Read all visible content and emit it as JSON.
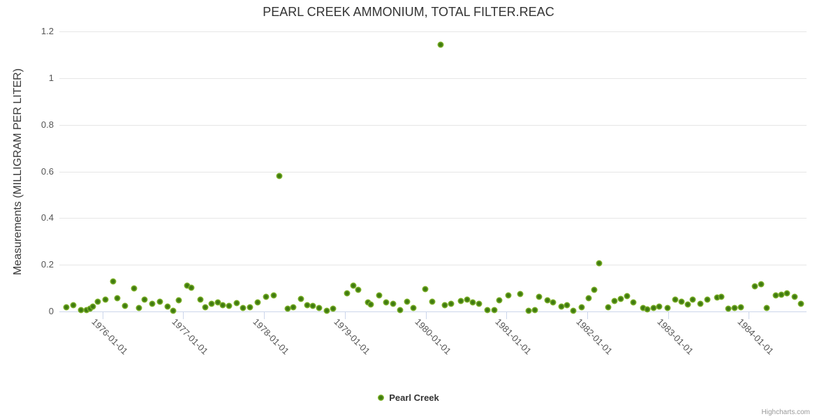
{
  "credits": {
    "label": "Highcharts.com"
  },
  "legend": {
    "label": "Pearl Creek"
  },
  "colors": {
    "marker_outer": "#8bbd30",
    "marker_inner": "#3e7a10",
    "grid": "#e6e6e6",
    "axis_line": "#ccd6eb",
    "tick": "#ccd6eb",
    "title": "#333333",
    "labels": "#555555",
    "credits": "#999999"
  },
  "chart_data": {
    "type": "scatter",
    "title": "PEARL CREEK AMMONIUM, TOTAL FILTER.REAC",
    "xlabel": "",
    "ylabel": "Measurements (MILLIGRAM PER LITER)",
    "ylim": [
      0,
      1.2
    ],
    "xlim_years": [
      1975.467,
      1984.713
    ],
    "grid": "horizontal",
    "legend_position": "bottom-center",
    "y_ticks": [
      0,
      0.2,
      0.4,
      0.6,
      0.8,
      1,
      1.2
    ],
    "y_tick_labels": [
      "0",
      "0.2",
      "0.4",
      "0.6",
      "0.8",
      "1",
      "1.2"
    ],
    "x_tick_labels": [
      "1976-01-01",
      "1977-01-01",
      "1978-01-01",
      "1979-01-01",
      "1980-01-01",
      "1981-01-01",
      "1982-01-01",
      "1983-01-01",
      "1984-01-01"
    ],
    "series": [
      {
        "name": "Pearl Creek",
        "color": "#8bbd30",
        "points": [
          [
            "1975-07-20",
            0.019
          ],
          [
            "1975-08-21",
            0.028
          ],
          [
            "1975-09-25",
            0.007
          ],
          [
            "1975-10-20",
            0.007
          ],
          [
            "1975-11-05",
            0.011
          ],
          [
            "1975-11-18",
            0.022
          ],
          [
            "1975-12-10",
            0.041
          ],
          [
            "1976-01-14",
            0.051
          ],
          [
            "1976-02-18",
            0.129
          ],
          [
            "1976-03-07",
            0.057
          ],
          [
            "1976-04-11",
            0.025
          ],
          [
            "1976-05-21",
            0.098
          ],
          [
            "1976-06-13",
            0.014
          ],
          [
            "1976-07-08",
            0.052
          ],
          [
            "1976-08-12",
            0.034
          ],
          [
            "1976-09-16",
            0.043
          ],
          [
            "1976-10-21",
            0.022
          ],
          [
            "1976-11-15",
            0.004
          ],
          [
            "1976-12-11",
            0.049
          ],
          [
            "1977-01-18",
            0.112
          ],
          [
            "1977-02-06",
            0.102
          ],
          [
            "1977-03-17",
            0.052
          ],
          [
            "1977-04-09",
            0.019
          ],
          [
            "1977-05-07",
            0.034
          ],
          [
            "1977-06-05",
            0.04
          ],
          [
            "1977-06-27",
            0.026
          ],
          [
            "1977-07-25",
            0.025
          ],
          [
            "1977-08-29",
            0.037
          ],
          [
            "1977-09-27",
            0.016
          ],
          [
            "1977-10-28",
            0.017
          ],
          [
            "1977-12-02",
            0.039
          ],
          [
            "1978-01-09",
            0.064
          ],
          [
            "1978-02-13",
            0.069
          ],
          [
            "1978-03-09",
            0.582
          ],
          [
            "1978-04-16",
            0.011
          ],
          [
            "1978-05-11",
            0.019
          ],
          [
            "1978-06-15",
            0.054
          ],
          [
            "1978-07-13",
            0.026
          ],
          [
            "1978-08-08",
            0.025
          ],
          [
            "1978-09-05",
            0.014
          ],
          [
            "1978-10-10",
            0.002
          ],
          [
            "1978-11-08",
            0.011
          ],
          [
            "1979-01-10",
            0.079
          ],
          [
            "1979-02-08",
            0.111
          ],
          [
            "1979-03-01",
            0.094
          ],
          [
            "1979-04-13",
            0.04
          ],
          [
            "1979-04-28",
            0.029
          ],
          [
            "1979-06-03",
            0.069
          ],
          [
            "1979-07-04",
            0.04
          ],
          [
            "1979-08-05",
            0.032
          ],
          [
            "1979-09-06",
            0.007
          ],
          [
            "1979-10-07",
            0.041
          ],
          [
            "1979-11-05",
            0.016
          ],
          [
            "1979-12-28",
            0.095
          ],
          [
            "1980-01-29",
            0.042
          ],
          [
            "1980-03-06",
            1.143
          ],
          [
            "1980-03-28",
            0.026
          ],
          [
            "1980-04-26",
            0.034
          ],
          [
            "1980-06-07",
            0.046
          ],
          [
            "1980-07-05",
            0.051
          ],
          [
            "1980-08-02",
            0.039
          ],
          [
            "1980-08-30",
            0.034
          ],
          [
            "1980-10-05",
            0.007
          ],
          [
            "1980-11-06",
            0.005
          ],
          [
            "1980-11-28",
            0.049
          ],
          [
            "1981-01-08",
            0.069
          ],
          [
            "1981-03-01",
            0.076
          ],
          [
            "1981-04-08",
            0.004
          ],
          [
            "1981-05-06",
            0.007
          ],
          [
            "1981-05-28",
            0.064
          ],
          [
            "1981-07-02",
            0.049
          ],
          [
            "1981-07-30",
            0.039
          ],
          [
            "1981-09-07",
            0.022
          ],
          [
            "1981-10-02",
            0.027
          ],
          [
            "1981-10-30",
            0.004
          ],
          [
            "1981-12-05",
            0.017
          ],
          [
            "1982-01-06",
            0.057
          ],
          [
            "1982-01-31",
            0.092
          ],
          [
            "1982-02-25",
            0.207
          ],
          [
            "1982-04-03",
            0.019
          ],
          [
            "1982-05-01",
            0.044
          ],
          [
            "1982-05-29",
            0.054
          ],
          [
            "1982-06-27",
            0.066
          ],
          [
            "1982-07-25",
            0.039
          ],
          [
            "1982-09-11",
            0.016
          ],
          [
            "1982-09-30",
            0.01
          ],
          [
            "1982-10-28",
            0.014
          ],
          [
            "1982-11-23",
            0.022
          ],
          [
            "1982-12-30",
            0.016
          ],
          [
            "1983-02-04",
            0.052
          ],
          [
            "1983-03-02",
            0.041
          ],
          [
            "1983-03-30",
            0.031
          ],
          [
            "1983-04-22",
            0.051
          ],
          [
            "1983-05-26",
            0.032
          ],
          [
            "1983-06-27",
            0.051
          ],
          [
            "1983-08-11",
            0.059
          ],
          [
            "1983-08-29",
            0.064
          ],
          [
            "1983-09-28",
            0.011
          ],
          [
            "1983-10-29",
            0.016
          ],
          [
            "1983-11-27",
            0.017
          ],
          [
            "1984-01-29",
            0.109
          ],
          [
            "1984-02-27",
            0.117
          ],
          [
            "1984-03-22",
            0.016
          ],
          [
            "1984-05-02",
            0.069
          ],
          [
            "1984-05-27",
            0.071
          ],
          [
            "1984-06-22",
            0.079
          ],
          [
            "1984-07-26",
            0.064
          ],
          [
            "1984-08-24",
            0.034
          ]
        ]
      }
    ]
  }
}
